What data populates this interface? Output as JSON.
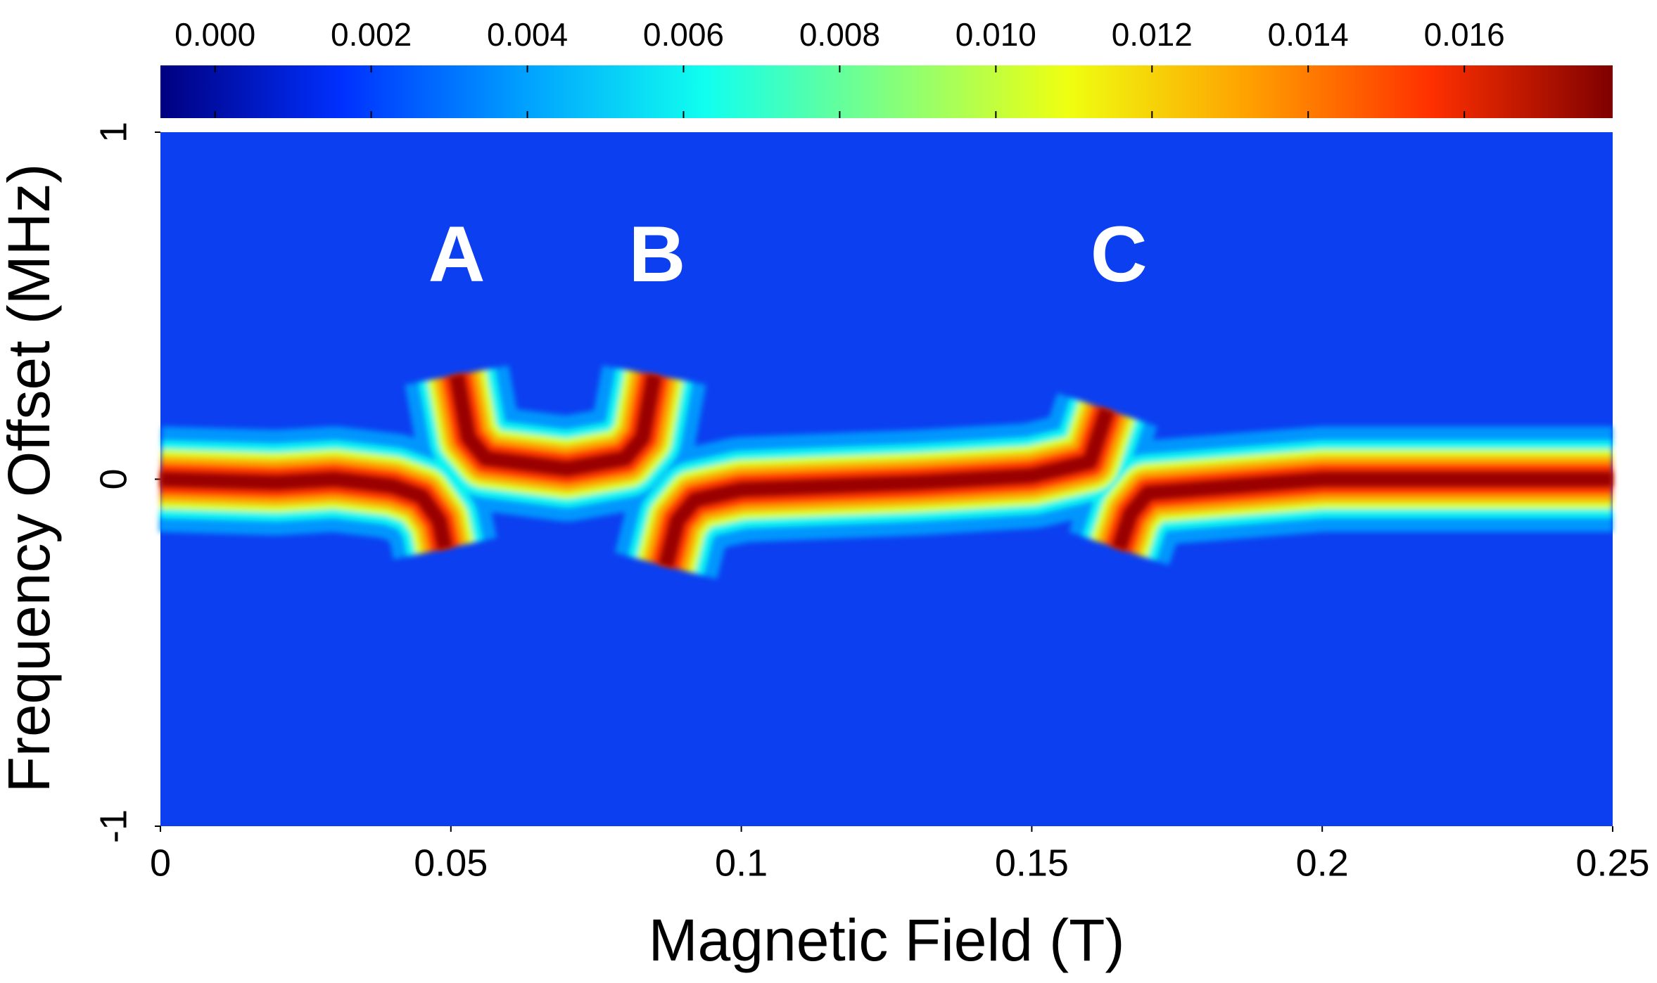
{
  "chart_data": {
    "type": "heatmap",
    "x_label": "Magnetic Field (T)",
    "y_label": "Frequency Offset (MHz)",
    "xlim": [
      0,
      0.25
    ],
    "xticks": [
      0,
      0.05,
      0.1,
      0.15,
      0.2,
      0.25
    ],
    "ylim": [
      -1,
      1
    ],
    "yticks": [
      -1,
      0,
      1
    ],
    "clim": [
      -0.0007,
      0.0179
    ],
    "cticks": [
      {
        "value": 0,
        "label": "0.000"
      },
      {
        "value": 0.002,
        "label": "0.002"
      },
      {
        "value": 0.004,
        "label": "0.004"
      },
      {
        "value": 0.006,
        "label": "0.006"
      },
      {
        "value": 0.008,
        "label": "0.008"
      },
      {
        "value": 0.01,
        "label": "0.010"
      },
      {
        "value": 0.012,
        "label": "0.012"
      },
      {
        "value": 0.014,
        "label": "0.014"
      },
      {
        "value": 0.016,
        "label": "0.016"
      }
    ],
    "colormap": [
      "#00007f",
      "#0030ff",
      "#00a0ff",
      "#10ffef",
      "#80ff80",
      "#efff10",
      "#ffa000",
      "#ff3000",
      "#7f0000"
    ],
    "x": [
      0,
      0.02,
      0.03,
      0.04,
      0.045,
      0.048,
      0.049,
      null,
      0.051,
      0.053,
      0.056,
      0.07,
      0.08,
      0.083,
      0.085,
      null,
      0.087,
      0.089,
      0.092,
      0.1,
      0.13,
      0.15,
      0.16,
      0.163,
      null,
      0.165,
      0.167,
      0.17,
      0.2,
      0.25
    ],
    "series": [
      {
        "name": "Frequency Offset",
        "color": "#9a0000",
        "values": [
          0,
          -0.01,
          0,
          -0.02,
          -0.05,
          -0.12,
          -0.2,
          null,
          0.3,
          0.12,
          0.06,
          0.03,
          0.06,
          0.12,
          0.3,
          null,
          -0.25,
          -0.12,
          -0.06,
          -0.03,
          -0.01,
          0.01,
          0.05,
          0.2,
          null,
          -0.2,
          -0.1,
          -0.04,
          0,
          0
        ]
      }
    ],
    "annotations": [
      {
        "text": "A",
        "x": 0.051,
        "y": 0.63
      },
      {
        "text": "B",
        "x": 0.0855,
        "y": 0.63
      },
      {
        "text": "C",
        "x": 0.165,
        "y": 0.63
      }
    ]
  }
}
